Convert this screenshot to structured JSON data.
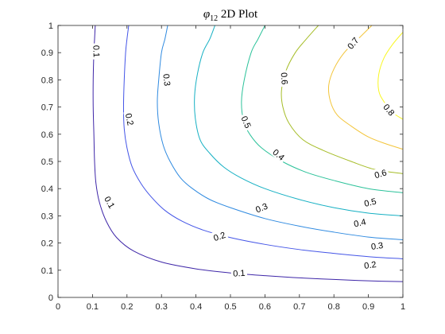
{
  "chart_data": {
    "type": "contour",
    "title": {
      "symbol": "φ",
      "subscript": "12",
      "rest": " 2D Plot"
    },
    "xlabel": "",
    "ylabel": "",
    "xlim": [
      0,
      1
    ],
    "ylim": [
      0,
      1
    ],
    "xticks": [
      "0",
      "0.1",
      "0.2",
      "0.3",
      "0.4",
      "0.5",
      "0.6",
      "0.7",
      "0.8",
      "0.9",
      "1"
    ],
    "yticks": [
      "0",
      "0.1",
      "0.2",
      "0.3",
      "0.4",
      "0.5",
      "0.6",
      "0.7",
      "0.8",
      "0.9",
      "1"
    ],
    "grid": false,
    "box": true,
    "levels": [
      {
        "value": "0.1",
        "color": "#3e26a8",
        "points": [
          [
            0.108,
            1.0
          ],
          [
            0.106,
            0.95
          ],
          [
            0.104,
            0.9
          ],
          [
            0.102,
            0.8
          ],
          [
            0.102,
            0.7
          ],
          [
            0.104,
            0.6
          ],
          [
            0.106,
            0.5
          ],
          [
            0.11,
            0.42
          ],
          [
            0.12,
            0.35
          ],
          [
            0.14,
            0.28
          ],
          [
            0.17,
            0.22
          ],
          [
            0.22,
            0.17
          ],
          [
            0.3,
            0.13
          ],
          [
            0.4,
            0.105
          ],
          [
            0.5,
            0.09
          ],
          [
            0.6,
            0.08
          ],
          [
            0.7,
            0.072
          ],
          [
            0.8,
            0.066
          ],
          [
            0.9,
            0.061
          ],
          [
            1.0,
            0.058
          ]
        ],
        "labels": [
          {
            "text": "0.1",
            "x": 0.112,
            "y": 0.905,
            "angle": 88
          },
          {
            "text": "0.1",
            "x": 0.15,
            "y": 0.35,
            "angle": 60
          },
          {
            "text": "0.1",
            "x": 0.525,
            "y": 0.09,
            "angle": -4
          }
        ]
      },
      {
        "value": "0.2",
        "color": "#4455e7",
        "points": [
          [
            0.205,
            1.0
          ],
          [
            0.2,
            0.95
          ],
          [
            0.196,
            0.9
          ],
          [
            0.192,
            0.8
          ],
          [
            0.19,
            0.7
          ],
          [
            0.192,
            0.62
          ],
          [
            0.2,
            0.55
          ],
          [
            0.215,
            0.48
          ],
          [
            0.24,
            0.42
          ],
          [
            0.27,
            0.37
          ],
          [
            0.31,
            0.32
          ],
          [
            0.36,
            0.28
          ],
          [
            0.42,
            0.248
          ],
          [
            0.5,
            0.22
          ],
          [
            0.6,
            0.195
          ],
          [
            0.7,
            0.176
          ],
          [
            0.8,
            0.162
          ],
          [
            0.9,
            0.15
          ],
          [
            1.0,
            0.142
          ]
        ],
        "labels": [
          {
            "text": "0.2",
            "x": 0.208,
            "y": 0.655,
            "angle": 78
          },
          {
            "text": "0.2",
            "x": 0.468,
            "y": 0.225,
            "angle": -18
          },
          {
            "text": "0.2",
            "x": 0.905,
            "y": 0.12,
            "angle": -8
          }
        ]
      },
      {
        "value": "0.3",
        "color": "#2f8ae0",
        "points": [
          [
            0.318,
            1.0
          ],
          [
            0.31,
            0.95
          ],
          [
            0.3,
            0.9
          ],
          [
            0.292,
            0.8
          ],
          [
            0.288,
            0.72
          ],
          [
            0.292,
            0.64
          ],
          [
            0.305,
            0.56
          ],
          [
            0.325,
            0.5
          ],
          [
            0.355,
            0.44
          ],
          [
            0.39,
            0.4
          ],
          [
            0.44,
            0.36
          ],
          [
            0.5,
            0.33
          ],
          [
            0.6,
            0.29
          ],
          [
            0.7,
            0.262
          ],
          [
            0.8,
            0.24
          ],
          [
            0.9,
            0.222
          ],
          [
            1.0,
            0.212
          ]
        ],
        "labels": [
          {
            "text": "0.3",
            "x": 0.316,
            "y": 0.8,
            "angle": 84
          },
          {
            "text": "0.3",
            "x": 0.59,
            "y": 0.33,
            "angle": -22
          },
          {
            "text": "0.3",
            "x": 0.925,
            "y": 0.19,
            "angle": -8
          }
        ]
      },
      {
        "value": "0.4",
        "color": "#16b0c3",
        "points": [
          [
            0.455,
            1.0
          ],
          [
            0.44,
            0.95
          ],
          [
            0.42,
            0.9
          ],
          [
            0.404,
            0.82
          ],
          [
            0.396,
            0.74
          ],
          [
            0.398,
            0.66
          ],
          [
            0.412,
            0.58
          ],
          [
            0.44,
            0.53
          ],
          [
            0.48,
            0.48
          ],
          [
            0.53,
            0.44
          ],
          [
            0.6,
            0.4
          ],
          [
            0.7,
            0.36
          ],
          [
            0.8,
            0.33
          ],
          [
            0.9,
            0.31
          ],
          [
            1.0,
            0.3
          ]
        ],
        "labels": [
          {
            "text": "0.4",
            "x": 0.64,
            "y": 0.525,
            "angle": 40
          },
          {
            "text": "0.4",
            "x": 0.875,
            "y": 0.275,
            "angle": -12
          }
        ]
      },
      {
        "value": "0.5",
        "color": "#2cc29a",
        "points": [
          [
            0.6,
            1.0
          ],
          [
            0.58,
            0.95
          ],
          [
            0.56,
            0.9
          ],
          [
            0.54,
            0.8
          ],
          [
            0.532,
            0.72
          ],
          [
            0.538,
            0.65
          ],
          [
            0.556,
            0.6
          ],
          [
            0.59,
            0.55
          ],
          [
            0.65,
            0.5
          ],
          [
            0.72,
            0.46
          ],
          [
            0.8,
            0.43
          ],
          [
            0.9,
            0.4
          ],
          [
            1.0,
            0.385
          ]
        ],
        "labels": [
          {
            "text": "0.5",
            "x": 0.546,
            "y": 0.645,
            "angle": 66
          },
          {
            "text": "0.5",
            "x": 0.905,
            "y": 0.35,
            "angle": -14
          }
        ]
      },
      {
        "value": "0.6",
        "color": "#a6bd28",
        "points": [
          [
            0.755,
            1.0
          ],
          [
            0.72,
            0.95
          ],
          [
            0.688,
            0.9
          ],
          [
            0.66,
            0.83
          ],
          [
            0.648,
            0.76
          ],
          [
            0.652,
            0.7
          ],
          [
            0.67,
            0.64
          ],
          [
            0.71,
            0.58
          ],
          [
            0.77,
            0.54
          ],
          [
            0.85,
            0.5
          ],
          [
            0.92,
            0.47
          ],
          [
            1.0,
            0.455
          ]
        ],
        "labels": [
          {
            "text": "0.6",
            "x": 0.657,
            "y": 0.805,
            "angle": 86
          },
          {
            "text": "0.6",
            "x": 0.935,
            "y": 0.455,
            "angle": -16
          }
        ]
      },
      {
        "value": "0.7",
        "color": "#f3c53a",
        "points": [
          [
            0.91,
            1.0
          ],
          [
            0.87,
            0.95
          ],
          [
            0.83,
            0.9
          ],
          [
            0.8,
            0.84
          ],
          [
            0.785,
            0.78
          ],
          [
            0.79,
            0.72
          ],
          [
            0.81,
            0.67
          ],
          [
            0.85,
            0.63
          ],
          [
            0.9,
            0.59
          ],
          [
            0.95,
            0.565
          ],
          [
            1.0,
            0.545
          ]
        ],
        "labels": [
          {
            "text": "0.7",
            "x": 0.855,
            "y": 0.935,
            "angle": -50
          }
        ]
      },
      {
        "value": "0.8",
        "color": "#f9f722",
        "points": [
          [
            1.0,
            0.975
          ],
          [
            0.97,
            0.93
          ],
          [
            0.945,
            0.88
          ],
          [
            0.93,
            0.82
          ],
          [
            0.93,
            0.76
          ],
          [
            0.945,
            0.72
          ],
          [
            0.97,
            0.68
          ],
          [
            1.0,
            0.655
          ]
        ],
        "labels": [
          {
            "text": "0.8",
            "x": 0.96,
            "y": 0.69,
            "angle": 50
          }
        ]
      }
    ]
  }
}
